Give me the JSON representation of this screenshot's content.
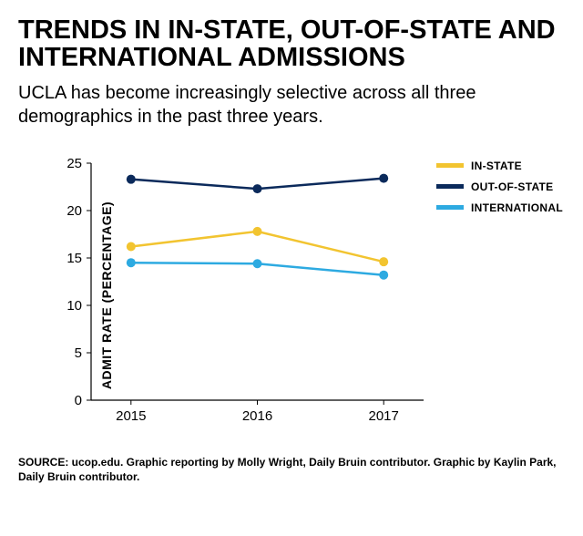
{
  "title": "TRENDS IN IN-STATE, OUT-OF-STATE AND INTERNATIONAL ADMISSIONS",
  "subtitle": "UCLA has become increasingly selective across all three demographics in the past three years.",
  "chart": {
    "type": "line",
    "ylabel": "ADMIT RATE (PERCENTAGE)",
    "x_categories": [
      "2015",
      "2016",
      "2017"
    ],
    "ylim": [
      0,
      25
    ],
    "ytick_step": 5,
    "yticks": [
      0,
      5,
      10,
      15,
      20,
      25
    ],
    "series": [
      {
        "name": "IN-STATE",
        "color": "#f2c430",
        "values": [
          16.2,
          17.8,
          14.6
        ]
      },
      {
        "name": "OUT-OF-STATE",
        "color": "#0b2a5b",
        "values": [
          23.3,
          22.3,
          23.4
        ]
      },
      {
        "name": "INTERNATIONAL",
        "color": "#2daae1",
        "values": [
          14.5,
          14.4,
          13.2
        ]
      }
    ],
    "axis_color": "#000000",
    "background_color": "#ffffff",
    "line_width": 2.5,
    "marker_radius": 5,
    "label_fontsize": 15,
    "legend_fontsize": 12,
    "ylabel_fontsize": 14
  },
  "source": "SOURCE: ucop.edu. Graphic reporting by Molly Wright, Daily Bruin contributor. Graphic by Kaylin Park, Daily Bruin contributor."
}
